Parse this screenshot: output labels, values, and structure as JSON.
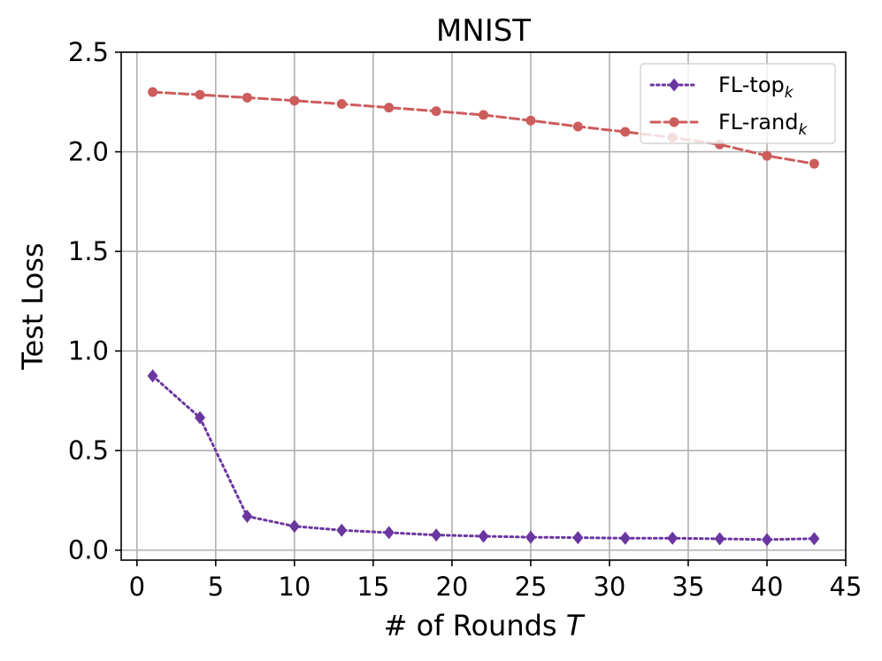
{
  "chart_data": {
    "type": "line",
    "title": "MNIST",
    "xlabel": "# of Rounds T",
    "xlabel_parts": {
      "prefix": "# of Rounds ",
      "var": "T"
    },
    "ylabel": "Test Loss",
    "xlim": [
      -1,
      45
    ],
    "ylim": [
      -0.05,
      2.5
    ],
    "xticks": [
      0,
      5,
      10,
      15,
      20,
      25,
      30,
      35,
      40,
      45
    ],
    "yticks": [
      0.0,
      0.5,
      1.0,
      1.5,
      2.0,
      2.5
    ],
    "xtick_labels": [
      "0",
      "5",
      "10",
      "15",
      "20",
      "25",
      "30",
      "35",
      "40",
      "45"
    ],
    "ytick_labels": [
      "0.0",
      "0.5",
      "1.0",
      "1.5",
      "2.0",
      "2.5"
    ],
    "grid": true,
    "legend_position": "top-right",
    "x": [
      1,
      4,
      7,
      10,
      13,
      16,
      19,
      22,
      25,
      28,
      31,
      34,
      37,
      40,
      43
    ],
    "series": [
      {
        "name": "FL-top_k",
        "legend_base": "FL-top",
        "legend_sub": "k",
        "color": "#6a36a0",
        "linestyle": "dotted",
        "marker": "diamond",
        "values": [
          0.875,
          0.665,
          0.17,
          0.12,
          0.1,
          0.088,
          0.076,
          0.07,
          0.065,
          0.063,
          0.06,
          0.06,
          0.057,
          0.053,
          0.058
        ]
      },
      {
        "name": "FL-rand_k",
        "legend_base": "FL-rand",
        "legend_sub": "k",
        "color": "#cd5c5c",
        "linestyle": "dashed",
        "marker": "circle",
        "values": [
          2.3,
          2.286,
          2.272,
          2.257,
          2.24,
          2.222,
          2.204,
          2.185,
          2.157,
          2.127,
          2.1,
          2.072,
          2.037,
          1.98,
          1.94
        ]
      }
    ]
  }
}
